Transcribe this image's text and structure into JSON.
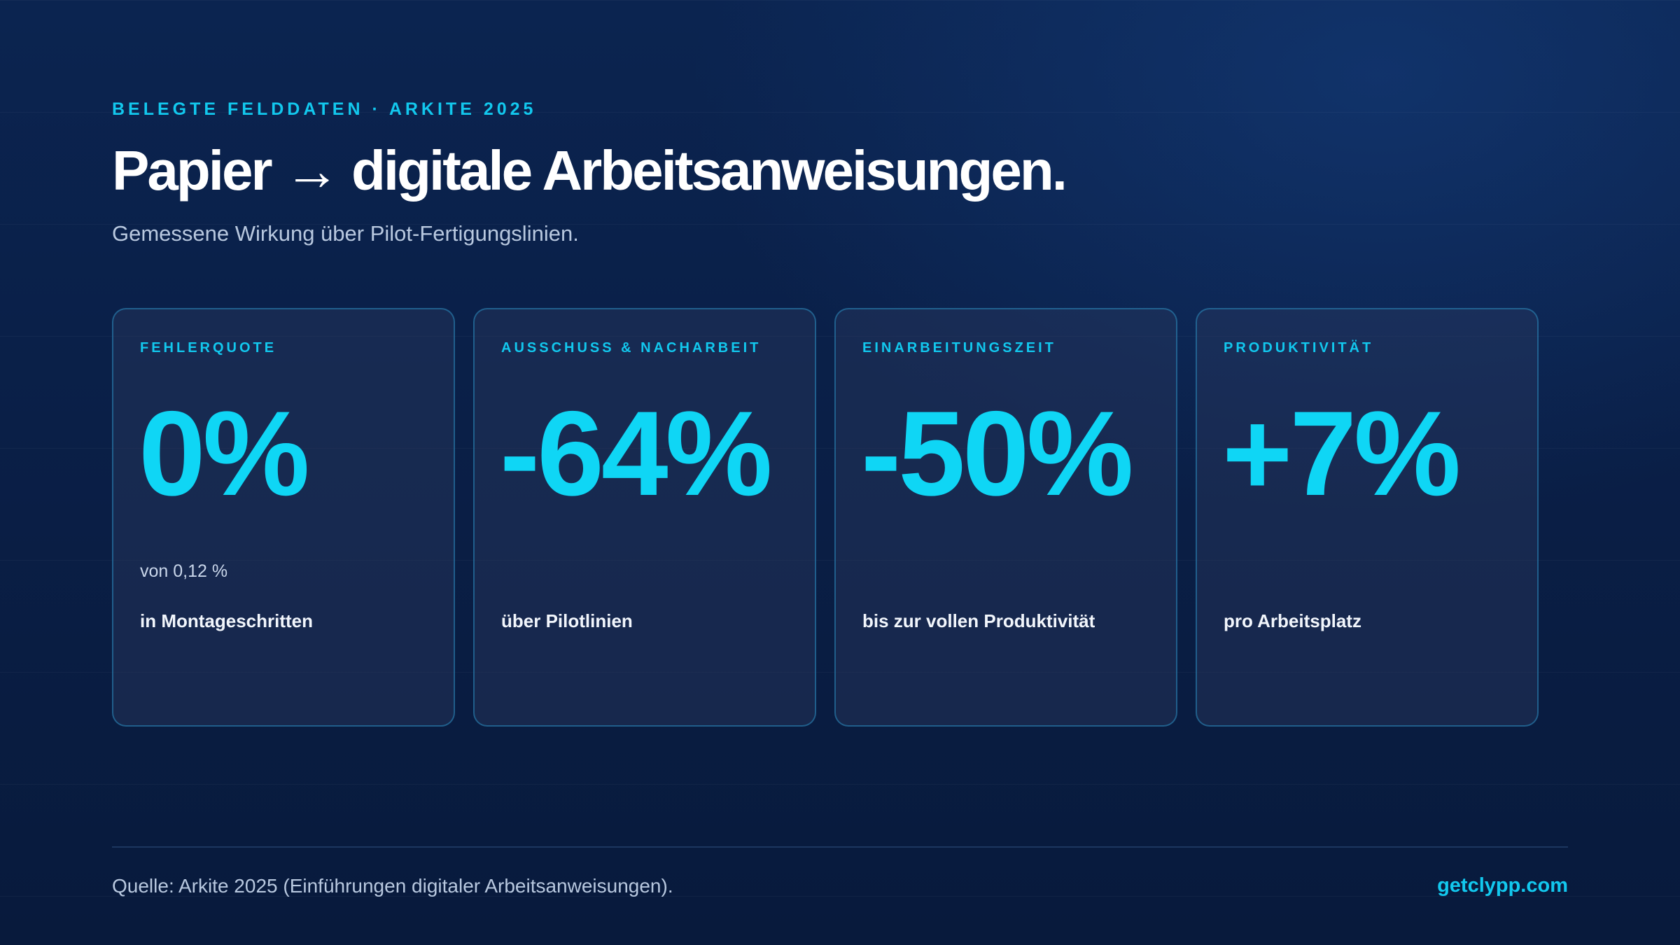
{
  "header": {
    "eyebrow": "BELEGTE FELDDATEN · ARKITE 2025",
    "title": "Papier → digitale Arbeitsanweisungen.",
    "subtitle": "Gemessene Wirkung über Pilot-Fertigungslinien."
  },
  "cards": [
    {
      "label": "FEHLERQUOTE",
      "value": "0%",
      "note": "von 0,12 %",
      "description": "in Montageschritten"
    },
    {
      "label": "AUSSCHUSS & NACHARBEIT",
      "value": "-64%",
      "note": "",
      "description": "über Pilotlinien"
    },
    {
      "label": "EINARBEITUNGSZEIT",
      "value": "-50%",
      "note": "",
      "description": "bis zur vollen Produktivität"
    },
    {
      "label": "PRODUKTIVITÄT",
      "value": "+7%",
      "note": "",
      "description": "pro Arbeitsplatz"
    }
  ],
  "footer": {
    "source": "Quelle: Arkite 2025 (Einführungen digitaler Arbeitsanweisungen).",
    "site": "getclypp.com"
  },
  "colors": {
    "accent": "#0fd6f5",
    "background": "#0a1f47",
    "card_border": "#288cbe"
  }
}
